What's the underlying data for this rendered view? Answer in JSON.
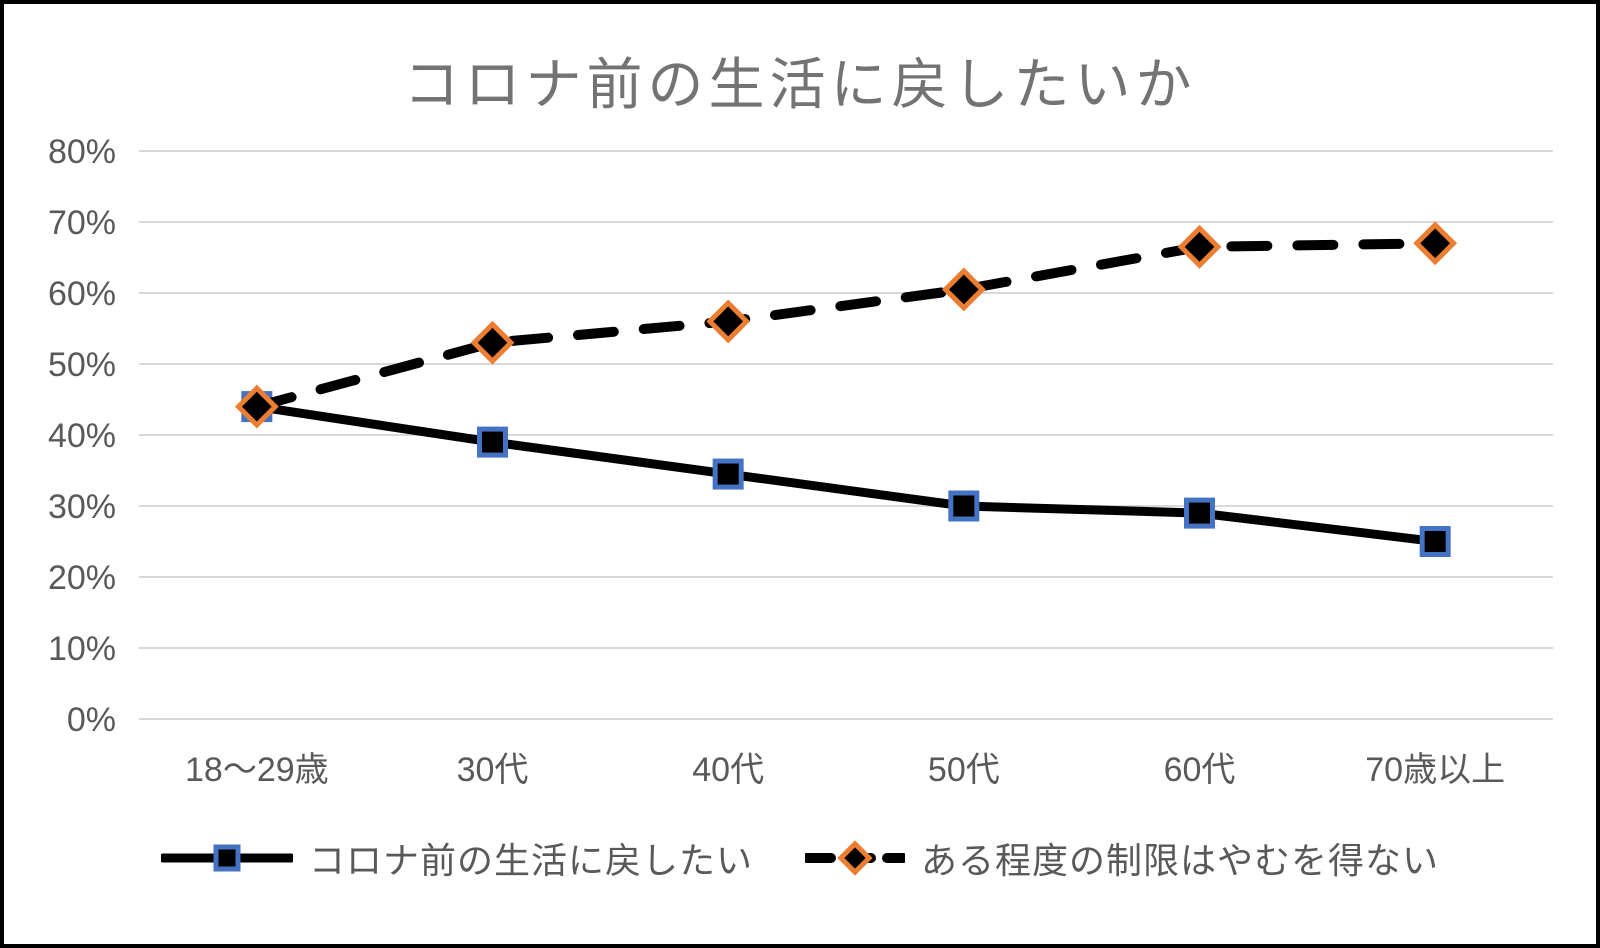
{
  "title": "コロナ前の生活に戻したいか",
  "chart_data": {
    "type": "line",
    "title": "コロナ前の生活に戻したいか",
    "categories": [
      "18〜29歳",
      "30代",
      "40代",
      "50代",
      "60代",
      "70歳以上"
    ],
    "series": [
      {
        "name": "コロナ前の生活に戻したい",
        "values": [
          44,
          39,
          34.5,
          30,
          29,
          25
        ],
        "line_style": "solid",
        "marker": "square",
        "marker_fill": "#000000",
        "marker_border": "#4472C4"
      },
      {
        "name": "ある程度の制限はやむを得ない",
        "values": [
          44,
          53,
          56,
          60.5,
          66.5,
          67
        ],
        "line_style": "dashed",
        "marker": "diamond",
        "marker_fill": "#000000",
        "marker_border": "#ED7D31"
      }
    ],
    "line_color": "#000000",
    "ylim": [
      0,
      80
    ],
    "ytick_step": 10,
    "ytick_suffix": "%",
    "ytick_labels": [
      "0%",
      "10%",
      "20%",
      "30%",
      "40%",
      "50%",
      "60%",
      "70%",
      "80%"
    ],
    "grid": true,
    "gridline_color": "#D9D9D9",
    "legend_position": "bottom",
    "title_color": "#737373",
    "axis_label_color": "#595959"
  }
}
